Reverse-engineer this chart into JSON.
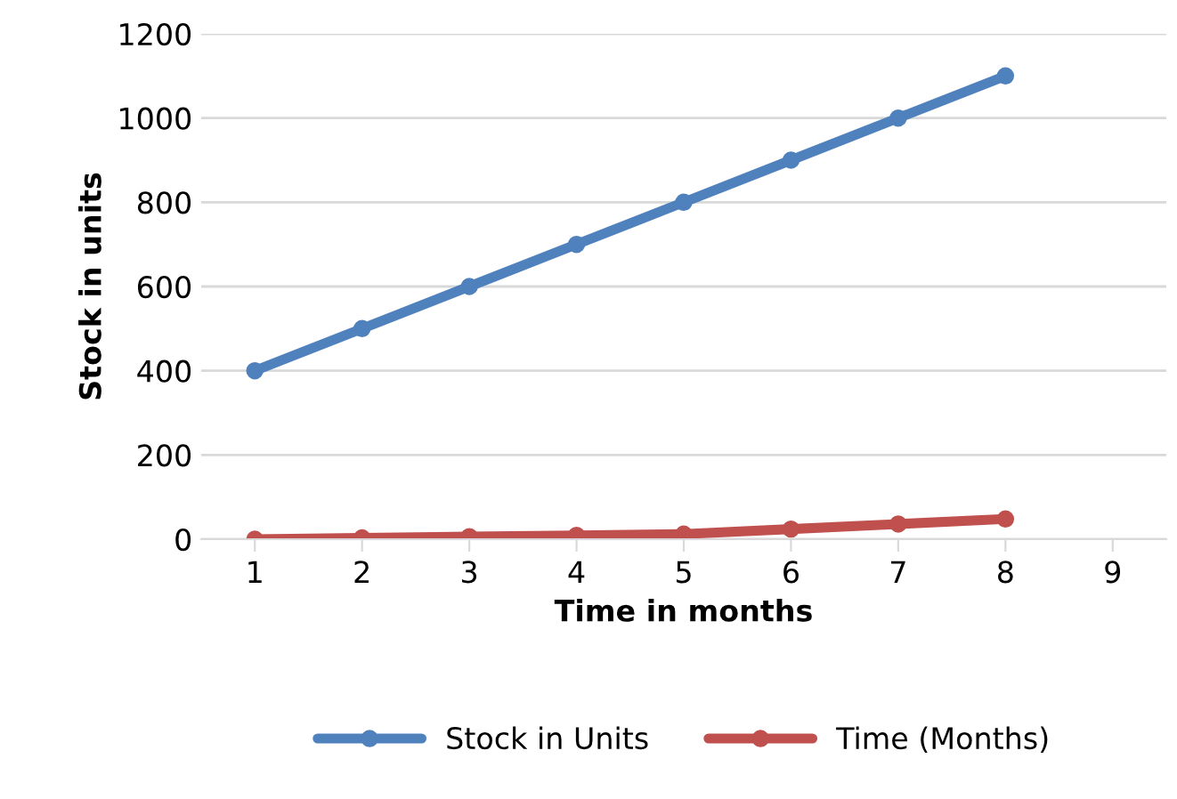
{
  "chart_data": {
    "type": "line",
    "xlabel": "Time in months",
    "ylabel": "Stock in units",
    "categories": [
      "1",
      "2",
      "3",
      "4",
      "5",
      "6",
      "7",
      "8",
      "9"
    ],
    "series": [
      {
        "name": "Stock in Units",
        "color": "#4f81bd",
        "values": [
          400,
          500,
          600,
          700,
          800,
          900,
          1000,
          1100,
          null
        ]
      },
      {
        "name": "Time (Months)",
        "color": "#c0504d",
        "values": [
          0,
          3,
          6,
          9,
          12,
          24,
          36,
          48,
          null
        ]
      }
    ],
    "ylim": [
      0,
      1200
    ],
    "yticks": [
      0,
      200,
      400,
      600,
      800,
      1000,
      1200
    ],
    "grid": "y",
    "legend": "bottom",
    "marker": "circle",
    "line_style": "solid"
  }
}
